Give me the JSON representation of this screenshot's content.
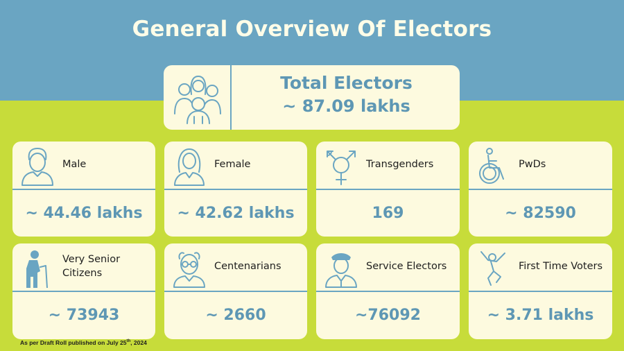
{
  "title": "General Overview Of Electors",
  "total": {
    "label": "Total Electors",
    "value": "~ 87.09 lakhs",
    "icon": "group-people-icon"
  },
  "stats": [
    {
      "label": "Male",
      "value": "~ 44.46 lakhs",
      "icon": "man-icon"
    },
    {
      "label": "Female",
      "value": "~ 42.62 lakhs",
      "icon": "woman-icon"
    },
    {
      "label": "Transgenders",
      "value": "169",
      "icon": "transgender-symbol-icon"
    },
    {
      "label": "PwDs",
      "value": "~ 82590",
      "icon": "wheelchair-icon"
    },
    {
      "label": "Very Senior Citizens",
      "value": "~ 73943",
      "icon": "elderly-person-icon"
    },
    {
      "label": "Centenarians",
      "value": "~ 2660",
      "icon": "old-man-glasses-icon"
    },
    {
      "label": "Service Electors",
      "value": "~76092",
      "icon": "officer-icon"
    },
    {
      "label": "First Time Voters",
      "value": "~ 3.71 lakhs",
      "icon": "jumping-person-icon"
    }
  ],
  "footnote": {
    "prefix": "As per Draft Roll published on July 25",
    "sup": "th",
    "suffix": ", 2024"
  },
  "colors": {
    "top_band": "#6aa5c2",
    "bottom_band": "#c7dc3a",
    "card": "#fdfadf",
    "accent": "#5e97b4"
  }
}
